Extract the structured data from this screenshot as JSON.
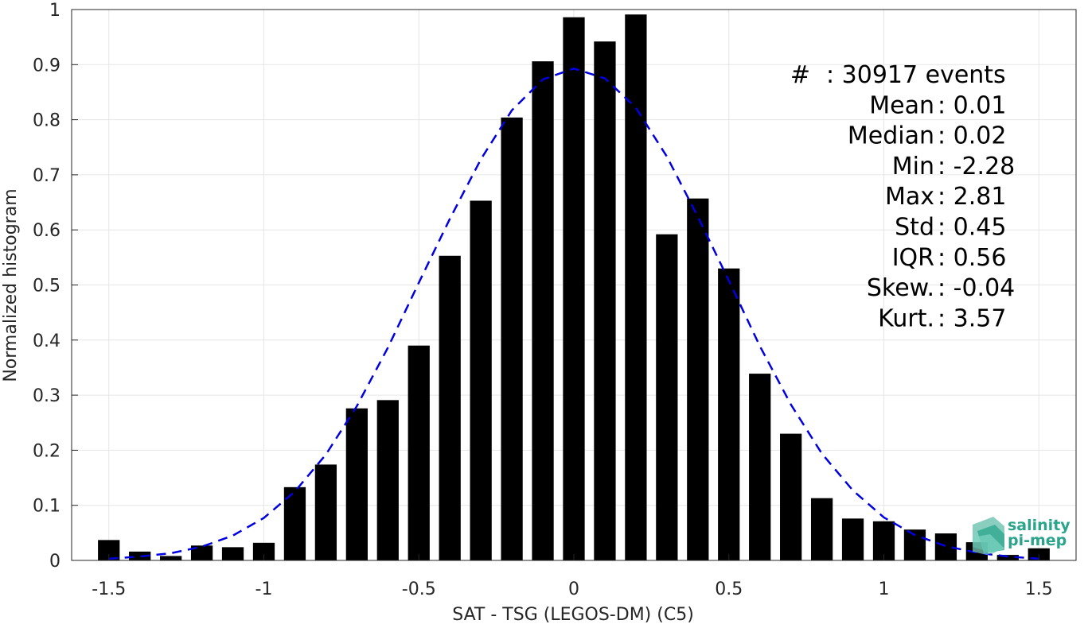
{
  "chart_data": {
    "type": "bar",
    "xlabel": "SAT - TSG (LEGOS-DM) (C5)",
    "ylabel": "Normalized histogram",
    "xlim": [
      -1.62,
      1.62
    ],
    "ylim": [
      0,
      1
    ],
    "grid": true,
    "xticks": [
      -1.5,
      -1,
      -0.5,
      0,
      0.5,
      1,
      1.5
    ],
    "xtick_labels": [
      "-1.5",
      "-1",
      "-0.5",
      "0",
      "0.5",
      "1",
      "1.5"
    ],
    "yticks": [
      0,
      0.1,
      0.2,
      0.3,
      0.4,
      0.5,
      0.6,
      0.7,
      0.8,
      0.9,
      1
    ],
    "ytick_labels": [
      "0",
      "0.1",
      "0.2",
      "0.3",
      "0.4",
      "0.5",
      "0.6",
      "0.7",
      "0.8",
      "0.9",
      "1"
    ],
    "bar_color": "#000000",
    "bars": {
      "x": [
        -1.5,
        -1.4,
        -1.3,
        -1.2,
        -1.1,
        -1.0,
        -0.9,
        -0.8,
        -0.7,
        -0.6,
        -0.5,
        -0.4,
        -0.3,
        -0.2,
        -0.1,
        0.0,
        0.1,
        0.2,
        0.3,
        0.4,
        0.5,
        0.6,
        0.7,
        0.8,
        0.9,
        1.0,
        1.1,
        1.2,
        1.3,
        1.4,
        1.5
      ],
      "values": [
        0.037,
        0.016,
        0.008,
        0.027,
        0.024,
        0.032,
        0.133,
        0.174,
        0.276,
        0.291,
        0.39,
        0.553,
        0.653,
        0.804,
        0.906,
        0.986,
        0.942,
        0.991,
        0.592,
        0.657,
        0.53,
        0.339,
        0.23,
        0.113,
        0.076,
        0.071,
        0.056,
        0.049,
        0.033,
        0.01,
        0.022
      ]
    },
    "fit_curve": {
      "style": "dashed",
      "color": "#0000e0",
      "x": [
        -1.5,
        -1.4,
        -1.3,
        -1.2,
        -1.1,
        -1.0,
        -0.9,
        -0.8,
        -0.7,
        -0.6,
        -0.5,
        -0.4,
        -0.3,
        -0.2,
        -0.1,
        0.0,
        0.1,
        0.2,
        0.3,
        0.4,
        0.5,
        0.6,
        0.7,
        0.8,
        0.9,
        1.0,
        1.1,
        1.2,
        1.3,
        1.4,
        1.5
      ],
      "y": [
        0.003,
        0.007,
        0.013,
        0.025,
        0.045,
        0.077,
        0.125,
        0.192,
        0.28,
        0.386,
        0.504,
        0.62,
        0.728,
        0.817,
        0.873,
        0.893,
        0.875,
        0.822,
        0.733,
        0.624,
        0.508,
        0.389,
        0.283,
        0.194,
        0.127,
        0.078,
        0.046,
        0.026,
        0.014,
        0.007,
        0.003
      ]
    },
    "stats": [
      {
        "label": "#  ",
        "value": ": 30917 events"
      },
      {
        "label": "Mean ",
        "value": ": 0.01"
      },
      {
        "label": "Median ",
        "value": ": 0.02"
      },
      {
        "label": "Min ",
        "value": ": -2.28"
      },
      {
        "label": "Max ",
        "value": ": 2.81"
      },
      {
        "label": "Std ",
        "value": ": 0.45"
      },
      {
        "label": "IQR ",
        "value": ": 0.56"
      },
      {
        "label": "Skew. ",
        "value": ": -0.04"
      },
      {
        "label": "Kurt. ",
        "value": ": 3.57"
      }
    ]
  },
  "logo": {
    "line1": "salinity",
    "line2": "pi-mep",
    "color": "#2aa58c"
  }
}
